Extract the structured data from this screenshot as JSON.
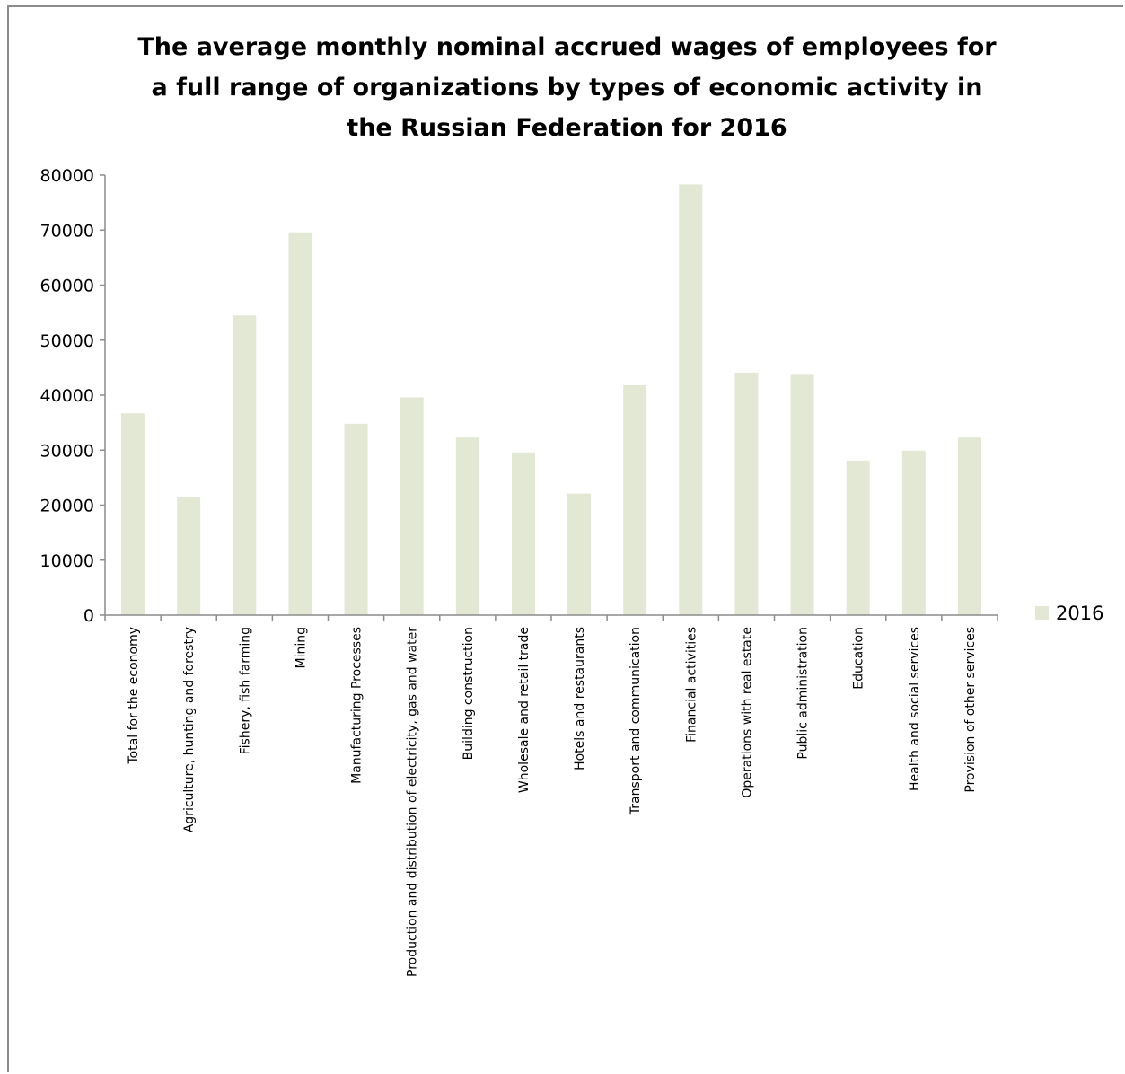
{
  "chart_data": {
    "type": "bar",
    "title": "The average monthly nominal accrued wages of employees for\na full range of organizations by types of economic activity in\nthe Russian Federation for 2016",
    "xlabel": "",
    "ylabel": "",
    "ylim": [
      0,
      80000
    ],
    "yticks": [
      0,
      10000,
      20000,
      30000,
      40000,
      50000,
      60000,
      70000,
      80000
    ],
    "grid": false,
    "legend_position": "right",
    "categories": [
      "Total for the economy",
      "Agriculture, hunting and forestry",
      "Fishery, fish farming",
      "Mining",
      "Manufacturing Processes",
      "Production and distribution of electricity, gas and water",
      "Building construction",
      "Wholesale and retail trade",
      "Hotels and restaurants",
      "Transport and communication",
      "Financial activities",
      "Operations with real estate",
      "Public administration",
      "Education",
      "Health and social services",
      "Provision of other services"
    ],
    "series": [
      {
        "name": "2016",
        "color": "#e2e8d4",
        "values": [
          36700,
          21500,
          54500,
          69600,
          34800,
          39600,
          32300,
          29600,
          22100,
          41800,
          78300,
          44100,
          43700,
          28100,
          29900,
          32300
        ]
      }
    ]
  },
  "colors": {
    "axis": "#8c8c8c",
    "bar": "#e2e8d4"
  }
}
